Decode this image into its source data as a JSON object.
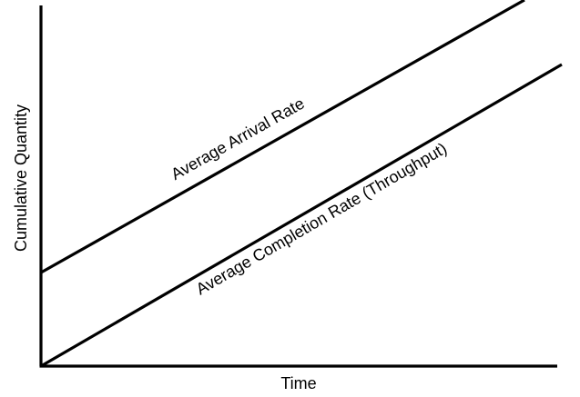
{
  "diagram": {
    "x_axis_label": "Time",
    "y_axis_label": "Cumulative Quantity",
    "lines": [
      {
        "label": "Average Arrival Rate"
      },
      {
        "label": "Average Completion Rate (Throughput)"
      }
    ],
    "line_color": "#000000",
    "background_color": "#ffffff"
  }
}
